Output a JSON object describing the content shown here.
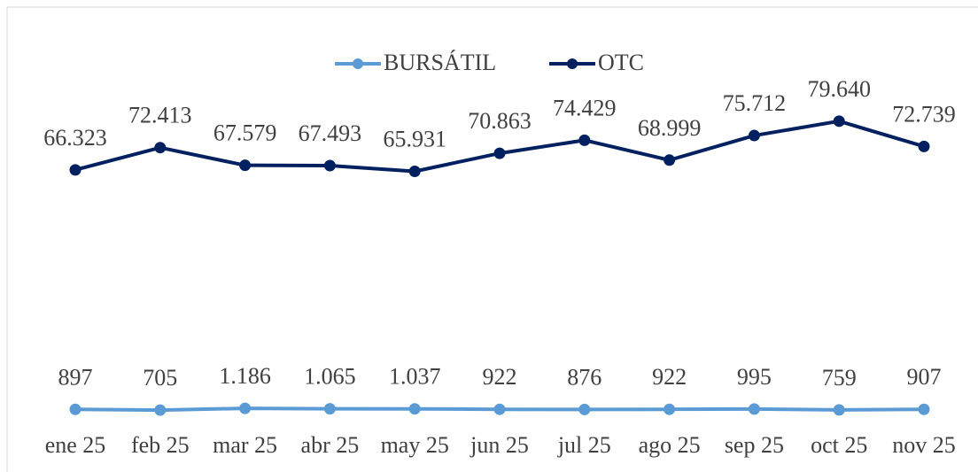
{
  "chart_data": {
    "type": "line",
    "categories": [
      "ene 25",
      "feb 25",
      "mar 25",
      "abr 25",
      "may 25",
      "jun 25",
      "jul 25",
      "ago 25",
      "sep 25",
      "oct 25",
      "nov 25"
    ],
    "series": [
      {
        "name": "BURSÁTIL",
        "color": "#5b9bd5",
        "values": [
          897,
          705,
          1186,
          1065,
          1037,
          922,
          876,
          922,
          995,
          759,
          907
        ],
        "value_labels": [
          "897",
          "705",
          "1.186",
          "1.065",
          "1.037",
          "922",
          "876",
          "922",
          "995",
          "759",
          "907"
        ]
      },
      {
        "name": "OTC",
        "color": "#002060",
        "values": [
          66323,
          72413,
          67579,
          67493,
          65931,
          70863,
          74429,
          68999,
          75712,
          79640,
          72739
        ],
        "value_labels": [
          "66.323",
          "72.413",
          "67.579",
          "67.493",
          "65.931",
          "70.863",
          "74.429",
          "68.999",
          "75.712",
          "79.640",
          "72.739"
        ]
      }
    ],
    "ylim": [
      0,
      90000
    ],
    "legend": "top"
  }
}
